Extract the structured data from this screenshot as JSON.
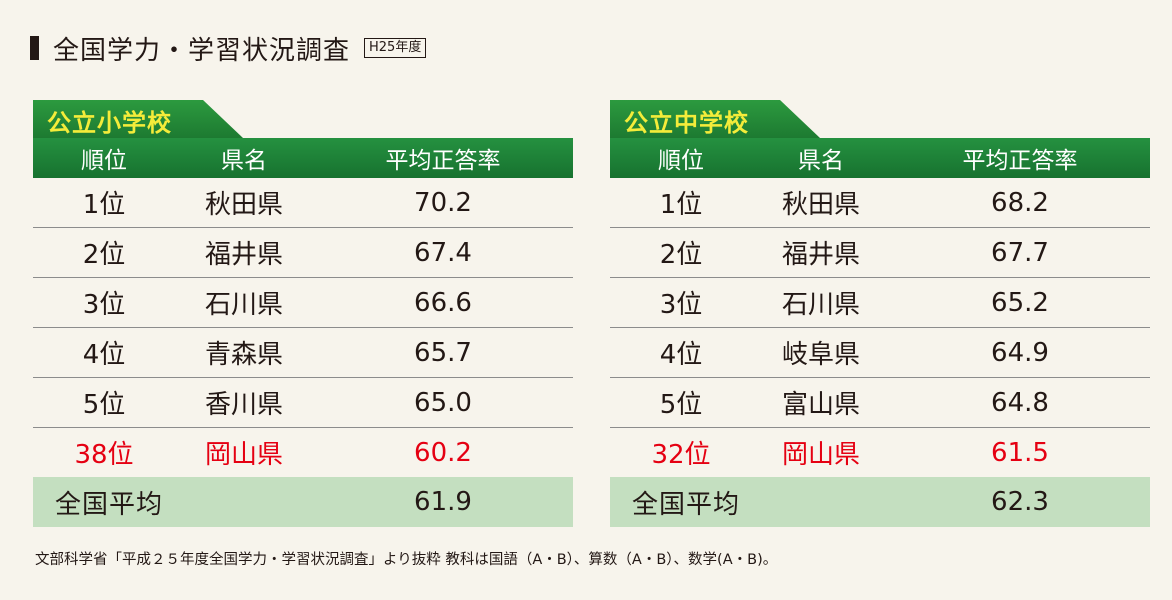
{
  "title": "全国学力・学習状況調査",
  "year_badge": "H25年度",
  "headers": {
    "rank": "順位",
    "prefecture": "県名",
    "rate": "平均正答率"
  },
  "elementary": {
    "label": "公立小学校",
    "rows": [
      {
        "rank": "1位",
        "prefecture": "秋田県",
        "rate": "70.2"
      },
      {
        "rank": "2位",
        "prefecture": "福井県",
        "rate": "67.4"
      },
      {
        "rank": "3位",
        "prefecture": "石川県",
        "rate": "66.6"
      },
      {
        "rank": "4位",
        "prefecture": "青森県",
        "rate": "65.7"
      },
      {
        "rank": "5位",
        "prefecture": "香川県",
        "rate": "65.0"
      },
      {
        "rank": "38位",
        "prefecture": "岡山県",
        "rate": "60.2"
      }
    ],
    "average_label": "全国平均",
    "average_value": "61.9"
  },
  "junior_high": {
    "label": "公立中学校",
    "rows": [
      {
        "rank": "1位",
        "prefecture": "秋田県",
        "rate": "68.2"
      },
      {
        "rank": "2位",
        "prefecture": "福井県",
        "rate": "67.7"
      },
      {
        "rank": "3位",
        "prefecture": "石川県",
        "rate": "65.2"
      },
      {
        "rank": "4位",
        "prefecture": "岐阜県",
        "rate": "64.9"
      },
      {
        "rank": "5位",
        "prefecture": "富山県",
        "rate": "64.8"
      },
      {
        "rank": "32位",
        "prefecture": "岡山県",
        "rate": "61.5"
      }
    ],
    "average_label": "全国平均",
    "average_value": "62.3"
  },
  "colors": {
    "highlight": "#e50012",
    "header_green": "#1d7a31",
    "tab_text": "#f4ec3a",
    "average_bg": "#c4dfc0"
  },
  "footnote": "文部科学省「平成２５年度全国学力・学習状況調査」より抜粋 教科は国語（A・B）、算数（A・B）、数学(A・B)。"
}
